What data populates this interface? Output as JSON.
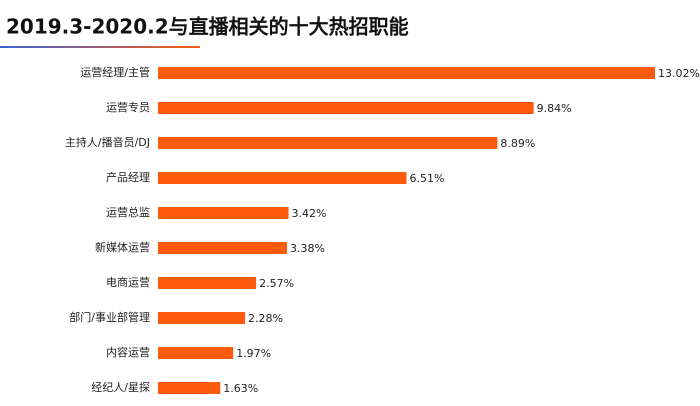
{
  "chart_data": {
    "type": "bar",
    "orientation": "horizontal",
    "title": "2019.3-2020.2与直播相关的十大热招职能",
    "categories": [
      "运营经理/主管",
      "运营专员",
      "主持人/播音员/DJ",
      "产品经理",
      "运营总监",
      "新媒体运营",
      "电商运营",
      "部门/事业部管理",
      "内容运营",
      "经纪人/星探"
    ],
    "values": [
      13.02,
      9.84,
      8.89,
      6.51,
      3.42,
      3.38,
      2.57,
      2.28,
      1.97,
      1.63
    ],
    "value_labels": [
      "13.02%",
      "9.84%",
      "8.89%",
      "6.51%",
      "3.42%",
      "3.38%",
      "2.57%",
      "2.28%",
      "1.97%",
      "1.63%"
    ],
    "color": "#fc5a0c"
  }
}
